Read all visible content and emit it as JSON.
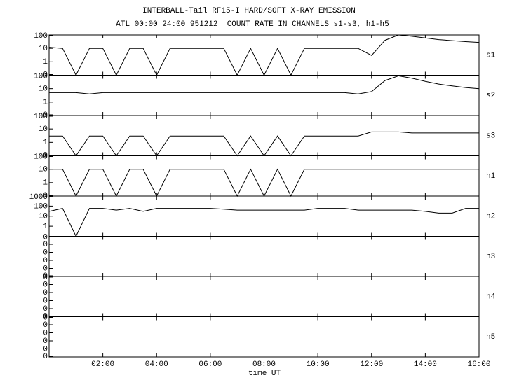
{
  "chart_data": {
    "type": "line",
    "title": "INTERBALL-Tail RF15-I HARD/SOFT X-RAY EMISSION",
    "subtitle": "ATL 00:00 24:00 951212  COUNT RATE IN CHANNELS s1-s3, h1-h5",
    "xlabel": "time UT",
    "color": "#000000",
    "xlim": [
      0,
      16
    ],
    "xticks": [
      {
        "value": 2,
        "label": "02:00"
      },
      {
        "value": 4,
        "label": "04:00"
      },
      {
        "value": 6,
        "label": "06:00"
      },
      {
        "value": 8,
        "label": "08:00"
      },
      {
        "value": 10,
        "label": "10:00"
      },
      {
        "value": 12,
        "label": "12:00"
      },
      {
        "value": 14,
        "label": "14:00"
      },
      {
        "value": 16,
        "label": "16:00"
      }
    ],
    "x": [
      0,
      0.5,
      1,
      1.5,
      2,
      2.5,
      3,
      3.5,
      4,
      4.5,
      5,
      5.5,
      6,
      6.5,
      7,
      7.5,
      8,
      8.5,
      9,
      9.5,
      10,
      10.5,
      11,
      11.5,
      12,
      12.5,
      13,
      13.5,
      14,
      14.5,
      15,
      15.5,
      16
    ],
    "panels": [
      {
        "name": "s1",
        "yscale": "log",
        "ylim": [
          0,
          100
        ],
        "yticks": [
          0,
          1,
          10,
          100
        ],
        "values": [
          12,
          10,
          0,
          10,
          10,
          0,
          10,
          10,
          0,
          10,
          10,
          10,
          10,
          10,
          0,
          10,
          0,
          10,
          0,
          10,
          10,
          10,
          10,
          10,
          3,
          40,
          100,
          80,
          60,
          45,
          38,
          32,
          28
        ]
      },
      {
        "name": "s2",
        "yscale": "log",
        "ylim": [
          0,
          100
        ],
        "yticks": [
          0,
          1,
          10,
          100
        ],
        "values": [
          5,
          5,
          5,
          4,
          5,
          5,
          5,
          5,
          5,
          5,
          5,
          5,
          5,
          5,
          5,
          5,
          5,
          5,
          5,
          5,
          5,
          5,
          5,
          4,
          6,
          40,
          90,
          60,
          35,
          22,
          16,
          12,
          10
        ]
      },
      {
        "name": "s3",
        "yscale": "log",
        "ylim": [
          0,
          100
        ],
        "yticks": [
          0,
          1,
          10,
          100
        ],
        "values": [
          3,
          3,
          0,
          3,
          3,
          0,
          3,
          3,
          0,
          3,
          3,
          3,
          3,
          3,
          0,
          3,
          0,
          3,
          0,
          3,
          3,
          3,
          3,
          3,
          6,
          6,
          6,
          5,
          5,
          5,
          5,
          5,
          5
        ]
      },
      {
        "name": "h1",
        "yscale": "log",
        "ylim": [
          0,
          100
        ],
        "yticks": [
          0,
          1,
          10,
          100
        ],
        "values": [
          10,
          10,
          0,
          10,
          10,
          0,
          10,
          10,
          0,
          10,
          10,
          10,
          10,
          10,
          0,
          10,
          0,
          10,
          0,
          10,
          10,
          10,
          10,
          10,
          10,
          10,
          10,
          10,
          10,
          10,
          10,
          10,
          10
        ]
      },
      {
        "name": "h2",
        "yscale": "log",
        "ylim": [
          0,
          1000
        ],
        "yticks": [
          1,
          10,
          100,
          1000
        ],
        "values": [
          30,
          60,
          0,
          60,
          60,
          40,
          60,
          30,
          60,
          60,
          60,
          60,
          60,
          50,
          40,
          40,
          40,
          40,
          40,
          40,
          60,
          60,
          60,
          40,
          40,
          40,
          40,
          40,
          30,
          20,
          20,
          60,
          60
        ]
      },
      {
        "name": "h3",
        "yscale": "linear",
        "ylim": [
          0,
          0.005
        ],
        "yticks": [
          {
            "value": 0,
            "label": "0"
          },
          {
            "value": 0.001,
            "label": "0"
          },
          {
            "value": 0.002,
            "label": "0"
          },
          {
            "value": 0.003,
            "label": "0"
          },
          {
            "value": 0.004,
            "label": "0"
          },
          {
            "value": 0.005,
            "label": "0"
          }
        ]
      },
      {
        "name": "h4",
        "yscale": "linear",
        "ylim": [
          0,
          0.005
        ],
        "yticks": [
          {
            "value": 0,
            "label": "0"
          },
          {
            "value": 0.001,
            "label": "0"
          },
          {
            "value": 0.002,
            "label": "0"
          },
          {
            "value": 0.003,
            "label": "0"
          },
          {
            "value": 0.004,
            "label": "0"
          },
          {
            "value": 0.005,
            "label": "0"
          }
        ]
      },
      {
        "name": "h5",
        "yscale": "linear",
        "ylim": [
          0,
          0.005
        ],
        "yticks": [
          {
            "value": 0,
            "label": "0"
          },
          {
            "value": 0.001,
            "label": "0"
          },
          {
            "value": 0.002,
            "label": "0"
          },
          {
            "value": 0.003,
            "label": "0"
          },
          {
            "value": 0.004,
            "label": "0"
          },
          {
            "value": 0.005,
            "label": "0"
          }
        ]
      }
    ]
  }
}
